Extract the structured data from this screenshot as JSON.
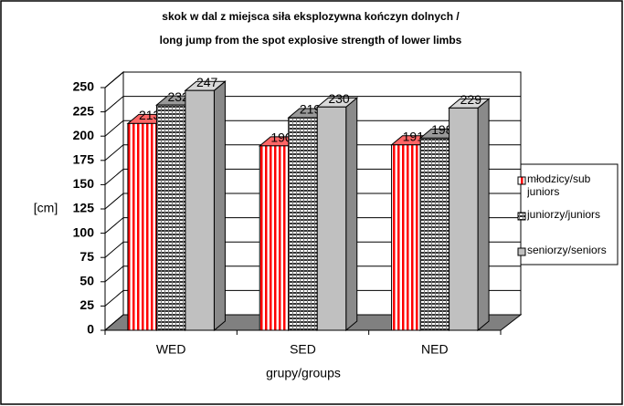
{
  "chart_data": {
    "type": "bar3d",
    "title": "skok w dal z miejsca siła eksplozywna kończyn dolnych /",
    "subtitle": "long jump from the spot explosive strength of lower limbs",
    "y_label": "[cm]",
    "x_label": "grupy/groups",
    "categories": [
      "WED",
      "SED",
      "NED"
    ],
    "series": [
      {
        "name": "młodzicy/sub juniors",
        "color": "#ff0000",
        "values": [
          213,
          190,
          191
        ]
      },
      {
        "name": "juniorzy/juniors",
        "color": "#333333",
        "values": [
          232,
          219,
          198
        ]
      },
      {
        "name": "seniorzy/seniors",
        "color": "#c0c0c0",
        "values": [
          247,
          230,
          229
        ]
      }
    ],
    "ylim": [
      0,
      250
    ],
    "yticks": [
      0,
      25,
      50,
      75,
      100,
      125,
      150,
      175,
      200,
      225,
      250
    ],
    "grid": true,
    "legend": "right"
  }
}
